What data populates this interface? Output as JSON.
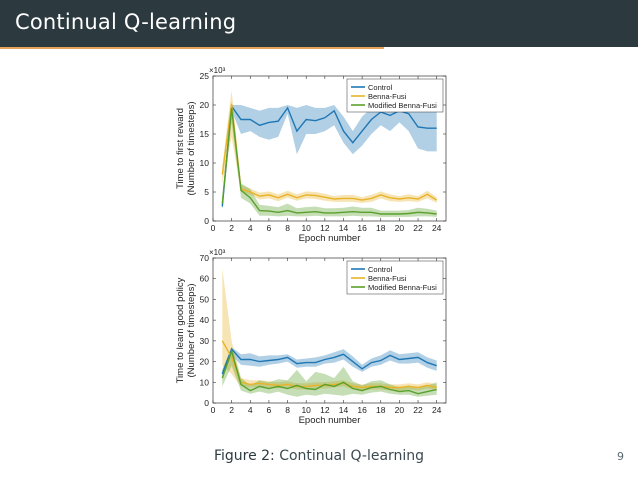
{
  "slide": {
    "title": "Continual Q-learning",
    "caption_prefix": "Figure 2:",
    "caption_text": "Continual Q-learning",
    "page_number": "9"
  },
  "colors": {
    "control": "#1f77b4",
    "benna": "#e8b32a",
    "modified": "#5aa02c"
  },
  "chart_data": [
    {
      "type": "line",
      "ylabel_line1": "Time to first reward",
      "ylabel_line2": "(Number of timesteps)",
      "xlabel": "Epoch number",
      "exponent_label": "×10³",
      "xlim": [
        0,
        25
      ],
      "ylim": [
        0,
        25
      ],
      "xticks": [
        0,
        2,
        4,
        6,
        8,
        10,
        12,
        14,
        16,
        18,
        20,
        22,
        24
      ],
      "yticks": [
        0,
        5,
        10,
        15,
        20,
        25
      ],
      "legend": [
        "Control",
        "Benna-Fusi",
        "Modified Benna-Fusi"
      ],
      "legend_position": "top-right",
      "x": [
        1,
        2,
        3,
        4,
        5,
        6,
        7,
        8,
        9,
        10,
        11,
        12,
        13,
        14,
        15,
        16,
        17,
        18,
        19,
        20,
        21,
        22,
        23,
        24
      ],
      "series": [
        {
          "name": "Control",
          "values": [
            2.5,
            19.8,
            17.5,
            17.5,
            16.5,
            17.0,
            17.2,
            19.5,
            15.5,
            17.5,
            17.3,
            17.8,
            19.0,
            15.5,
            13.5,
            15.5,
            17.5,
            18.8,
            18.2,
            19.0,
            18.5,
            16.2,
            16.0,
            16.0
          ],
          "lower": [
            2.0,
            19.0,
            15.0,
            15.5,
            14.5,
            14.0,
            14.5,
            18.5,
            11.5,
            15.0,
            15.0,
            15.5,
            16.5,
            13.5,
            11.5,
            13.0,
            15.0,
            16.5,
            15.5,
            17.0,
            15.5,
            12.5,
            12.0,
            12.0
          ],
          "upper": [
            3.0,
            20.0,
            20.0,
            19.5,
            19.0,
            19.5,
            19.5,
            20.0,
            19.5,
            20.0,
            19.5,
            19.5,
            20.0,
            18.0,
            15.5,
            18.0,
            19.5,
            20.0,
            20.0,
            20.0,
            20.0,
            19.5,
            19.5,
            19.5
          ]
        },
        {
          "name": "Benna-Fusi",
          "values": [
            8.0,
            20.2,
            5.5,
            5.0,
            4.3,
            4.5,
            4.0,
            4.6,
            4.0,
            4.5,
            4.4,
            4.1,
            3.8,
            3.9,
            3.9,
            3.6,
            3.9,
            4.5,
            4.0,
            3.8,
            4.0,
            3.8,
            4.6,
            3.6
          ],
          "lower": [
            6.5,
            14.5,
            5.0,
            4.5,
            3.7,
            3.9,
            3.4,
            4.0,
            3.5,
            3.9,
            3.8,
            3.5,
            3.3,
            3.3,
            3.3,
            3.1,
            3.3,
            3.9,
            3.4,
            3.3,
            3.4,
            3.3,
            3.9,
            3.1
          ],
          "upper": [
            9.5,
            22.5,
            6.2,
            5.6,
            4.9,
            5.1,
            4.6,
            5.2,
            4.6,
            5.1,
            5.0,
            4.7,
            4.3,
            4.5,
            4.5,
            4.1,
            4.5,
            5.1,
            4.6,
            4.3,
            4.6,
            4.3,
            5.2,
            4.1
          ]
        },
        {
          "name": "Modified Benna-Fusi",
          "values": [
            3.0,
            19.5,
            5.3,
            4.0,
            1.8,
            1.7,
            1.5,
            1.8,
            1.4,
            1.5,
            1.6,
            1.4,
            1.4,
            1.5,
            1.6,
            1.5,
            1.5,
            1.2,
            1.2,
            1.2,
            1.3,
            1.5,
            1.4,
            1.2
          ],
          "lower": [
            2.0,
            17.0,
            4.0,
            3.0,
            0.9,
            0.9,
            0.8,
            0.9,
            0.8,
            0.8,
            0.9,
            0.8,
            0.8,
            0.8,
            0.9,
            0.8,
            0.8,
            0.7,
            0.7,
            0.7,
            0.7,
            0.8,
            0.8,
            0.7
          ],
          "upper": [
            4.0,
            20.5,
            6.5,
            5.5,
            2.8,
            2.6,
            2.4,
            3.0,
            2.2,
            2.4,
            2.5,
            2.2,
            2.2,
            2.3,
            2.5,
            2.3,
            2.3,
            1.8,
            1.8,
            1.8,
            1.9,
            2.3,
            2.1,
            1.8
          ]
        }
      ]
    },
    {
      "type": "line",
      "ylabel_line1": "Time to learn good policy",
      "ylabel_line2": "(Number of timesteps)",
      "xlabel": "Epoch number",
      "exponent_label": "×10³",
      "xlim": [
        0,
        25
      ],
      "ylim": [
        0,
        70
      ],
      "xticks": [
        0,
        2,
        4,
        6,
        8,
        10,
        12,
        14,
        16,
        18,
        20,
        22,
        24
      ],
      "yticks": [
        0,
        10,
        20,
        30,
        40,
        50,
        60,
        70
      ],
      "legend": [
        "Control",
        "Benna-Fusi",
        "Modified Benna-Fusi"
      ],
      "legend_position": "top-right",
      "x": [
        1,
        2,
        3,
        4,
        5,
        6,
        7,
        8,
        9,
        10,
        11,
        12,
        13,
        14,
        15,
        16,
        17,
        18,
        19,
        20,
        21,
        22,
        23,
        24
      ],
      "series": [
        {
          "name": "Control",
          "values": [
            14.0,
            26.0,
            21.0,
            21.0,
            20.0,
            20.5,
            21.0,
            22.0,
            19.0,
            19.5,
            19.5,
            21.0,
            22.0,
            23.5,
            20.0,
            16.5,
            19.5,
            20.5,
            23.0,
            21.0,
            21.5,
            22.0,
            19.5,
            18.0
          ],
          "lower": [
            12.0,
            23.0,
            18.5,
            18.0,
            17.5,
            18.5,
            19.0,
            20.0,
            17.0,
            17.5,
            17.5,
            19.0,
            19.5,
            21.0,
            17.5,
            15.0,
            17.5,
            18.5,
            20.5,
            19.0,
            19.0,
            19.5,
            17.0,
            15.5
          ],
          "upper": [
            16.0,
            27.0,
            23.5,
            24.0,
            22.5,
            23.0,
            23.0,
            23.5,
            21.0,
            21.5,
            22.0,
            23.0,
            24.5,
            26.0,
            22.5,
            18.5,
            21.5,
            23.0,
            25.5,
            23.5,
            24.0,
            24.5,
            22.0,
            20.5
          ]
        },
        {
          "name": "Benna-Fusi",
          "values": [
            30.0,
            22.0,
            10.0,
            9.0,
            9.5,
            9.0,
            8.5,
            9.0,
            8.0,
            8.0,
            8.5,
            8.5,
            9.0,
            9.5,
            8.0,
            7.5,
            8.0,
            8.0,
            7.5,
            7.5,
            8.0,
            7.5,
            8.5,
            7.5
          ],
          "lower": [
            18.0,
            14.0,
            8.0,
            7.5,
            8.0,
            7.5,
            7.0,
            7.5,
            6.5,
            6.5,
            7.0,
            7.0,
            7.5,
            8.0,
            6.5,
            6.0,
            6.5,
            6.5,
            6.0,
            6.0,
            6.5,
            6.0,
            7.0,
            6.0
          ],
          "upper": [
            65.0,
            30.0,
            12.0,
            11.0,
            11.0,
            10.5,
            10.0,
            10.5,
            9.5,
            9.5,
            10.0,
            10.0,
            10.5,
            11.0,
            9.5,
            9.0,
            9.5,
            9.5,
            9.0,
            9.0,
            9.5,
            9.0,
            10.0,
            9.0
          ]
        },
        {
          "name": "Modified Benna-Fusi",
          "values": [
            12.0,
            25.0,
            9.0,
            6.0,
            8.0,
            7.0,
            8.0,
            7.0,
            8.5,
            7.0,
            6.5,
            9.0,
            8.0,
            10.0,
            7.0,
            6.0,
            7.5,
            8.0,
            6.5,
            5.5,
            6.0,
            4.5,
            5.5,
            6.5
          ],
          "lower": [
            8.0,
            18.0,
            6.0,
            4.5,
            5.5,
            4.5,
            5.5,
            4.0,
            3.0,
            4.0,
            3.5,
            4.5,
            4.0,
            3.5,
            4.5,
            4.0,
            5.0,
            5.5,
            4.5,
            4.0,
            4.0,
            3.0,
            3.5,
            4.0
          ],
          "upper": [
            16.0,
            27.0,
            12.0,
            8.5,
            11.0,
            10.0,
            11.5,
            11.0,
            16.0,
            10.5,
            15.0,
            14.0,
            12.0,
            17.5,
            10.5,
            8.5,
            10.5,
            11.0,
            9.0,
            7.5,
            8.5,
            7.0,
            8.5,
            10.0
          ]
        }
      ]
    }
  ]
}
